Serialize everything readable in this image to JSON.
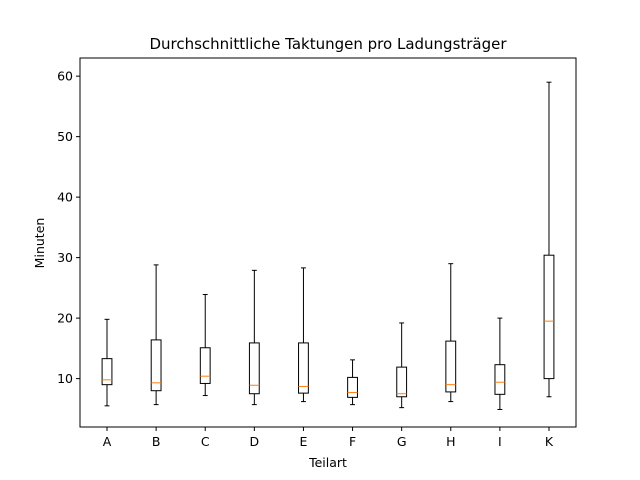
{
  "chart_data": {
    "type": "boxplot",
    "title": "Durchschnittliche Taktungen pro Ladungsträger",
    "xlabel": "Teilart",
    "ylabel": "Minuten",
    "ylim": [
      2,
      63
    ],
    "yticks": [
      10,
      20,
      30,
      40,
      50,
      60
    ],
    "grid": false,
    "median_color": "#ff7f0e",
    "categories": [
      "A",
      "B",
      "C",
      "D",
      "E",
      "F",
      "G",
      "H",
      "I",
      "K"
    ],
    "boxes": [
      {
        "category": "A",
        "whisker_low": 5.5,
        "q1": 9.0,
        "median": 9.8,
        "q3": 13.3,
        "whisker_high": 19.8
      },
      {
        "category": "B",
        "whisker_low": 5.7,
        "q1": 8.0,
        "median": 9.3,
        "q3": 16.4,
        "whisker_high": 28.8
      },
      {
        "category": "C",
        "whisker_low": 7.2,
        "q1": 9.2,
        "median": 10.4,
        "q3": 15.1,
        "whisker_high": 23.9
      },
      {
        "category": "D",
        "whisker_low": 5.7,
        "q1": 7.5,
        "median": 8.9,
        "q3": 15.9,
        "whisker_high": 27.9
      },
      {
        "category": "E",
        "whisker_low": 6.2,
        "q1": 7.6,
        "median": 8.7,
        "q3": 15.9,
        "whisker_high": 28.3
      },
      {
        "category": "F",
        "whisker_low": 5.7,
        "q1": 6.9,
        "median": 7.7,
        "q3": 10.2,
        "whisker_high": 13.1
      },
      {
        "category": "G",
        "whisker_low": 5.2,
        "q1": 7.0,
        "median": 7.5,
        "q3": 11.9,
        "whisker_high": 19.2
      },
      {
        "category": "H",
        "whisker_low": 6.2,
        "q1": 7.8,
        "median": 9.0,
        "q3": 16.2,
        "whisker_high": 29.0
      },
      {
        "category": "I",
        "whisker_low": 4.9,
        "q1": 7.4,
        "median": 9.4,
        "q3": 12.3,
        "whisker_high": 20.0
      },
      {
        "category": "K",
        "whisker_low": 7.0,
        "q1": 10.0,
        "median": 19.5,
        "q3": 30.4,
        "whisker_high": 59.0
      }
    ]
  }
}
